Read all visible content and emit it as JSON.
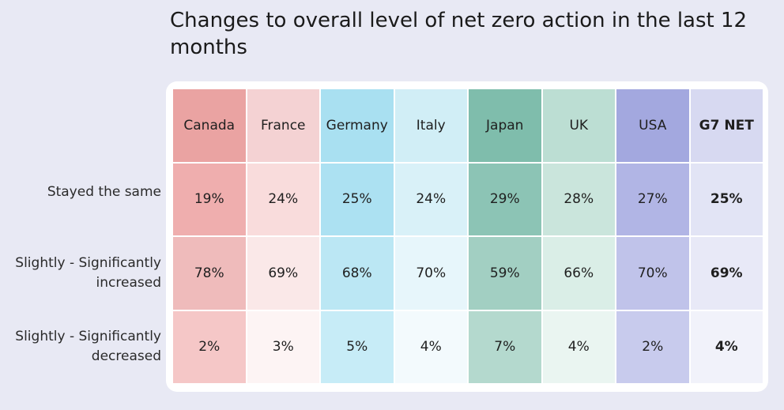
{
  "chart_data": {
    "type": "table",
    "title": "Changes to overall level of net zero action in the last 12 months",
    "columns": [
      "Canada",
      "France",
      "Germany",
      "Italy",
      "Japan",
      "UK",
      "USA",
      "G7 NET"
    ],
    "rows": [
      {
        "label": "Stayed the same",
        "values": [
          "19%",
          "24%",
          "25%",
          "24%",
          "29%",
          "28%",
          "27%",
          "25%"
        ]
      },
      {
        "label": "Slightly - Significantly increased",
        "values": [
          "78%",
          "69%",
          "68%",
          "70%",
          "59%",
          "66%",
          "70%",
          "69%"
        ]
      },
      {
        "label": "Slightly - Significantly decreased",
        "values": [
          "2%",
          "3%",
          "5%",
          "4%",
          "7%",
          "4%",
          "2%",
          "4%"
        ]
      }
    ],
    "colors": {
      "header": [
        "#eaa3a2",
        "#f4d2d3",
        "#a9e0f1",
        "#d1eef6",
        "#7fbdac",
        "#bcded3",
        "#a3a8df",
        "#d7d9f1"
      ],
      "row1": [
        "#efaeae",
        "#f9dcdc",
        "#ace1f2",
        "#d9f1f8",
        "#8cc4b5",
        "#cae5dc",
        "#b1b5e5",
        "#e2e4f5"
      ],
      "row2": [
        "#efbbbb",
        "#fae8e8",
        "#bbe7f4",
        "#e7f6fb",
        "#a2cfc2",
        "#daeee7",
        "#c0c3ea",
        "#e8e9f7"
      ],
      "row3": [
        "#f5c7c7",
        "#fdf4f4",
        "#c7ecf7",
        "#f3fafd",
        "#b4d9ce",
        "#eaf5f1",
        "#c8cbed",
        "#f1f2fa"
      ]
    }
  }
}
